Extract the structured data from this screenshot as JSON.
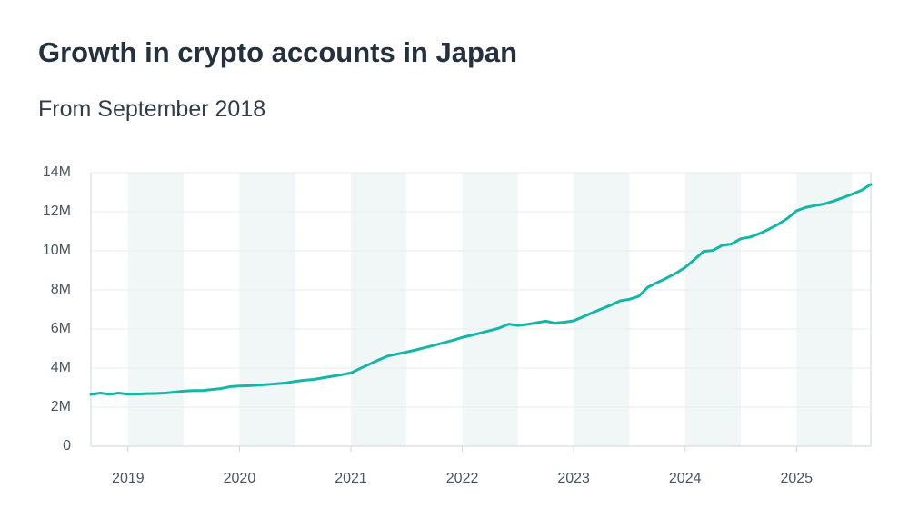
{
  "chart_data": {
    "type": "line",
    "title": "Growth in crypto accounts in Japan",
    "subtitle": "From September 2018",
    "x": [
      "2018-09",
      "2018-10",
      "2018-11",
      "2018-12",
      "2019-01",
      "2019-02",
      "2019-03",
      "2019-04",
      "2019-05",
      "2019-06",
      "2019-07",
      "2019-08",
      "2019-09",
      "2019-10",
      "2019-11",
      "2019-12",
      "2020-01",
      "2020-02",
      "2020-03",
      "2020-04",
      "2020-05",
      "2020-06",
      "2020-07",
      "2020-08",
      "2020-09",
      "2020-10",
      "2020-11",
      "2020-12",
      "2021-01",
      "2021-02",
      "2021-03",
      "2021-04",
      "2021-05",
      "2021-06",
      "2021-07",
      "2021-08",
      "2021-09",
      "2021-10",
      "2021-11",
      "2021-12",
      "2022-01",
      "2022-02",
      "2022-03",
      "2022-04",
      "2022-05",
      "2022-06",
      "2022-07",
      "2022-08",
      "2022-09",
      "2022-10",
      "2022-11",
      "2022-12",
      "2023-01",
      "2023-02",
      "2023-03",
      "2023-04",
      "2023-05",
      "2023-06",
      "2023-07",
      "2023-08",
      "2023-09",
      "2023-10",
      "2023-11",
      "2023-12",
      "2024-01",
      "2024-02",
      "2024-03",
      "2024-04",
      "2024-05",
      "2024-06",
      "2024-07",
      "2024-08",
      "2024-09",
      "2024-10",
      "2024-11",
      "2024-12",
      "2025-01",
      "2025-02",
      "2025-03",
      "2025-04",
      "2025-05",
      "2025-06",
      "2025-07",
      "2025-08",
      "2025-09"
    ],
    "series": [
      {
        "color": "#14b6a6",
        "values": [
          2.65,
          2.72,
          2.66,
          2.72,
          2.66,
          2.67,
          2.69,
          2.7,
          2.72,
          2.77,
          2.82,
          2.85,
          2.85,
          2.9,
          2.95,
          3.05,
          3.08,
          3.1,
          3.13,
          3.16,
          3.2,
          3.24,
          3.32,
          3.38,
          3.42,
          3.5,
          3.58,
          3.66,
          3.75,
          3.98,
          4.2,
          4.42,
          4.62,
          4.72,
          4.82,
          4.93,
          5.05,
          5.17,
          5.3,
          5.42,
          5.57,
          5.68,
          5.8,
          5.92,
          6.05,
          6.25,
          6.18,
          6.24,
          6.32,
          6.4,
          6.3,
          6.35,
          6.42,
          6.62,
          6.83,
          7.03,
          7.22,
          7.44,
          7.52,
          7.67,
          8.14,
          8.38,
          8.6,
          8.85,
          9.15,
          9.55,
          9.97,
          10.02,
          10.28,
          10.35,
          10.62,
          10.7,
          10.88,
          11.1,
          11.35,
          11.65,
          12.05,
          12.22,
          12.32,
          12.4,
          12.55,
          12.72,
          12.9,
          13.1,
          13.4
        ]
      }
    ],
    "xlim": [
      "2018-09",
      "2025-09"
    ],
    "xticks": [
      {
        "value": "2019-01",
        "label": "2019"
      },
      {
        "value": "2020-01",
        "label": "2020"
      },
      {
        "value": "2021-01",
        "label": "2021"
      },
      {
        "value": "2022-01",
        "label": "2022"
      },
      {
        "value": "2023-01",
        "label": "2023"
      },
      {
        "value": "2024-01",
        "label": "2024"
      },
      {
        "value": "2025-01",
        "label": "2025"
      }
    ],
    "ylim": [
      0,
      14
    ],
    "yticks": [
      0,
      {
        "value": 2,
        "label": "2M"
      },
      {
        "value": 4,
        "label": "4M"
      },
      {
        "value": 6,
        "label": "6M"
      },
      {
        "value": 8,
        "label": "8M"
      },
      {
        "value": 10,
        "label": "10M"
      },
      {
        "value": 12,
        "label": "12M"
      },
      {
        "value": 14,
        "label": "14M"
      }
    ],
    "grid": true
  }
}
